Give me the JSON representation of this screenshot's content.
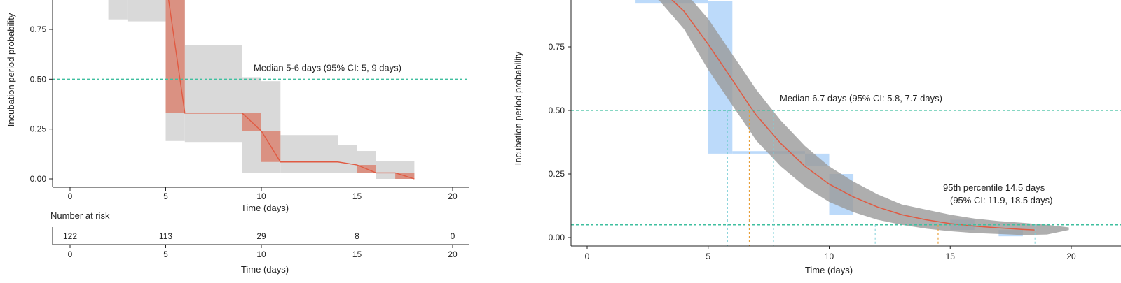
{
  "chart_data": [
    {
      "panel": "left",
      "type": "line",
      "xlabel": "Time (days)",
      "ylabel": "Incubation period probability",
      "xlim": [
        -2,
        21
      ],
      "ylim": [
        0,
        0.93
      ],
      "x_ticks": [
        "0",
        "5",
        "10",
        "15",
        "20"
      ],
      "y_ticks": [
        "0.00",
        "0.25",
        "0.50",
        "0.75"
      ],
      "median_line_y": 0.5,
      "median_label": "Median 5-6 days (95% CI: 5, 9 days)",
      "ci_band": [
        {
          "x0": 2.0,
          "x1": 3.0,
          "lo": 0.8,
          "hi": 1.0
        },
        {
          "x0": 3.0,
          "x1": 5.0,
          "lo": 0.79,
          "hi": 1.0
        },
        {
          "x0": 5.0,
          "x1": 6.0,
          "lo": 0.19,
          "hi": 1.0
        },
        {
          "x0": 6.0,
          "x1": 9.0,
          "lo": 0.185,
          "hi": 0.67
        },
        {
          "x0": 9.0,
          "x1": 10.0,
          "lo": 0.03,
          "hi": 0.51
        },
        {
          "x0": 10.0,
          "x1": 11.0,
          "lo": 0.03,
          "hi": 0.49
        },
        {
          "x0": 11.0,
          "x1": 14.0,
          "lo": 0.03,
          "hi": 0.22
        },
        {
          "x0": 14.0,
          "x1": 15.0,
          "lo": 0.03,
          "hi": 0.17
        },
        {
          "x0": 15.0,
          "x1": 16.0,
          "lo": 0.03,
          "hi": 0.14
        },
        {
          "x0": 16.0,
          "x1": 18.0,
          "lo": 0.0,
          "hi": 0.09
        }
      ],
      "step_rects": [
        {
          "x0": 5.0,
          "x1": 6.0,
          "lo": 0.33,
          "hi": 1.0
        },
        {
          "x0": 9.0,
          "x1": 10.0,
          "lo": 0.24,
          "hi": 0.33
        },
        {
          "x0": 10.0,
          "x1": 11.0,
          "lo": 0.085,
          "hi": 0.24
        },
        {
          "x0": 15.0,
          "x1": 16.0,
          "lo": 0.03,
          "hi": 0.07
        },
        {
          "x0": 17.0,
          "x1": 18.0,
          "lo": 0.0,
          "hi": 0.03
        }
      ],
      "series": [
        {
          "x": [
            2.0,
            5.0,
            6.0,
            9.0,
            10.0,
            11.0,
            14.0,
            15.0,
            16.0,
            17.0,
            18.0
          ],
          "y": [
            1.0,
            1.0,
            0.33,
            0.33,
            0.24,
            0.085,
            0.085,
            0.07,
            0.03,
            0.03,
            0.0
          ]
        }
      ],
      "risk_table": {
        "title": "Number at risk",
        "x": [
          0,
          5,
          10,
          15,
          20
        ],
        "counts": [
          "122",
          "113",
          "29",
          "8",
          "0"
        ],
        "x_ticks": [
          "0",
          "5",
          "10",
          "15",
          "20"
        ],
        "xlabel": "Time (days)"
      }
    },
    {
      "panel": "right",
      "type": "line",
      "xlabel": "Time (days)",
      "ylabel": "Incubation period probability",
      "xlim": [
        -1.5,
        21
      ],
      "ylim": [
        0,
        0.92
      ],
      "x_ticks": [
        "0",
        "5",
        "10",
        "15",
        "20"
      ],
      "y_ticks": [
        "0.00",
        "0.25",
        "0.50",
        "0.75"
      ],
      "median_line_y": 0.5,
      "p95_line_y": 0.05,
      "median_label": "Median 6.7 days (95% CI: 5.8, 7.7 days)",
      "p95_label_line1": "95th percentile 14.5 days",
      "p95_label_line2": "(95% CI: 11.9, 18.5 days)",
      "median_x": 6.7,
      "median_ci": [
        5.8,
        7.7
      ],
      "p95_x": 14.5,
      "p95_ci": [
        11.9,
        18.5
      ],
      "empirical_rects": [
        {
          "x0": 2.0,
          "x1": 5.0,
          "lo": 0.92,
          "hi": 1.0
        },
        {
          "x0": 5.0,
          "x1": 6.0,
          "lo": 0.33,
          "hi": 0.93
        },
        {
          "x0": 6.0,
          "x1": 9.0,
          "lo": 0.33,
          "hi": 0.34
        },
        {
          "x0": 9.0,
          "x1": 10.0,
          "lo": 0.28,
          "hi": 0.33
        },
        {
          "x0": 10.0,
          "x1": 11.0,
          "lo": 0.09,
          "hi": 0.25
        },
        {
          "x0": 15.0,
          "x1": 16.0,
          "lo": 0.03,
          "hi": 0.07
        },
        {
          "x0": 17.0,
          "x1": 18.0,
          "lo": 0.005,
          "hi": 0.03
        }
      ],
      "fit_band": [
        {
          "x": 2.0,
          "lo": 0.99,
          "hi": 1.0
        },
        {
          "x": 3.0,
          "lo": 0.93,
          "hi": 1.0
        },
        {
          "x": 4.0,
          "lo": 0.82,
          "hi": 0.97
        },
        {
          "x": 5.0,
          "lo": 0.66,
          "hi": 0.86
        },
        {
          "x": 6.0,
          "lo": 0.52,
          "hi": 0.72
        },
        {
          "x": 7.0,
          "lo": 0.38,
          "hi": 0.58
        },
        {
          "x": 8.0,
          "lo": 0.28,
          "hi": 0.46
        },
        {
          "x": 9.0,
          "lo": 0.2,
          "hi": 0.36
        },
        {
          "x": 10.0,
          "lo": 0.14,
          "hi": 0.28
        },
        {
          "x": 11.0,
          "lo": 0.1,
          "hi": 0.22
        },
        {
          "x": 12.0,
          "lo": 0.07,
          "hi": 0.17
        },
        {
          "x": 13.0,
          "lo": 0.05,
          "hi": 0.13
        },
        {
          "x": 14.0,
          "lo": 0.035,
          "hi": 0.11
        },
        {
          "x": 15.0,
          "lo": 0.025,
          "hi": 0.09
        },
        {
          "x": 16.0,
          "lo": 0.018,
          "hi": 0.075
        },
        {
          "x": 17.0,
          "lo": 0.014,
          "hi": 0.065
        },
        {
          "x": 18.0,
          "lo": 0.01,
          "hi": 0.058
        },
        {
          "x": 19.0,
          "lo": 0.012,
          "hi": 0.05
        },
        {
          "x": 19.9,
          "lo": 0.03,
          "hi": 0.04
        }
      ],
      "series": [
        {
          "x": [
            2.5,
            3,
            4,
            5,
            6,
            6.7,
            7,
            8,
            9,
            10,
            11,
            12,
            13,
            14,
            15,
            16,
            17,
            18,
            18.5
          ],
          "y": [
            1.0,
            0.98,
            0.89,
            0.76,
            0.62,
            0.52,
            0.48,
            0.37,
            0.28,
            0.21,
            0.16,
            0.12,
            0.09,
            0.07,
            0.055,
            0.045,
            0.038,
            0.032,
            0.03
          ]
        }
      ]
    }
  ]
}
